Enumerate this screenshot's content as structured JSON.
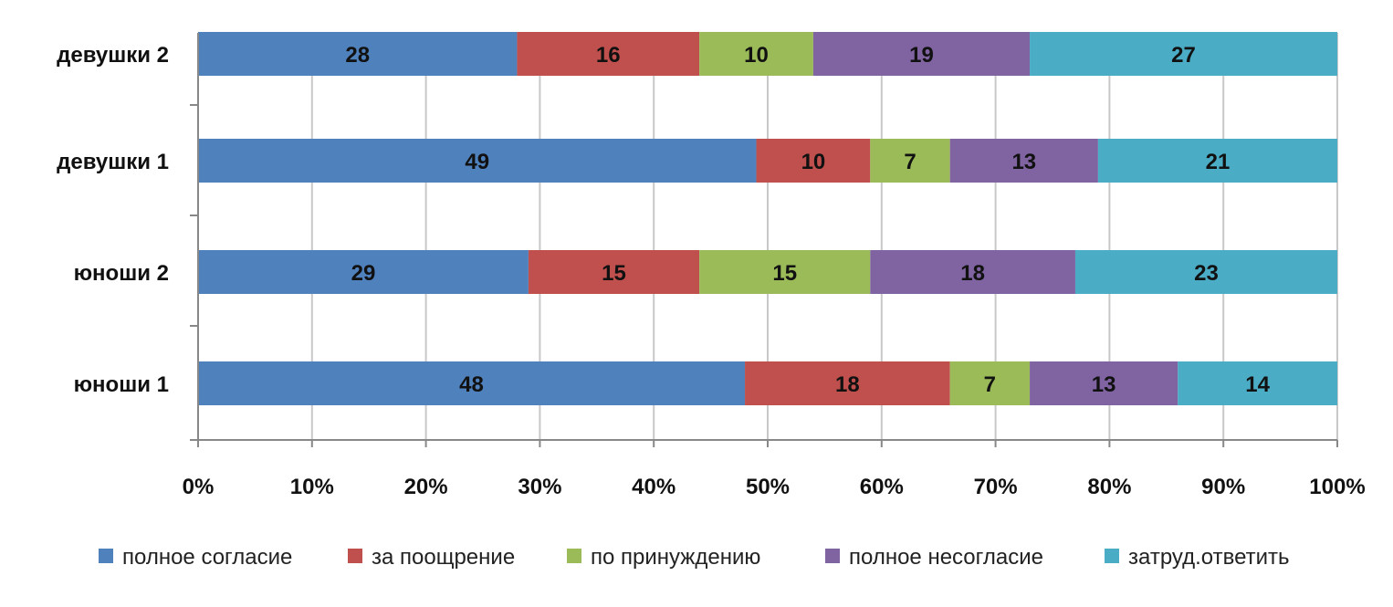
{
  "chart_data": {
    "type": "bar",
    "orientation": "horizontal",
    "stacked": "percent",
    "categories": [
      "девушки 2",
      "девушки 1",
      "юноши 2",
      "юноши 1"
    ],
    "series": [
      {
        "name": "полное согласие",
        "color": "#4F81BD",
        "values": [
          28,
          49,
          29,
          48
        ]
      },
      {
        "name": "за поощрение",
        "color": "#C0504D",
        "values": [
          16,
          10,
          15,
          18
        ]
      },
      {
        "name": "по принуждению",
        "color": "#9BBB59",
        "values": [
          10,
          7,
          15,
          7
        ]
      },
      {
        "name": "полное несогласие",
        "color": "#8064A2",
        "values": [
          19,
          13,
          18,
          13
        ]
      },
      {
        "name": "затруд.ответить",
        "color": "#4BACC6",
        "values": [
          27,
          21,
          23,
          14
        ]
      }
    ],
    "xticks": [
      "0%",
      "10%",
      "20%",
      "30%",
      "40%",
      "50%",
      "60%",
      "70%",
      "80%",
      "90%",
      "100%"
    ],
    "xlim": [
      0,
      100
    ],
    "grid": "vertical",
    "legend": "bottom"
  }
}
